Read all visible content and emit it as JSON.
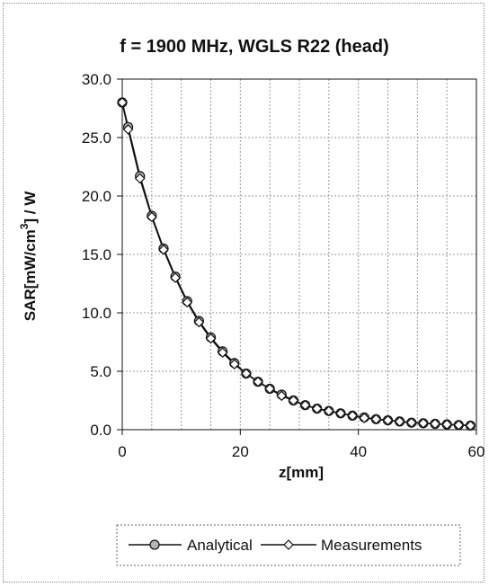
{
  "chart_data": {
    "type": "line",
    "title": "f = 1900 MHz, WGLS R22 (head)",
    "xlabel": "z[mm]",
    "ylabel_parts": {
      "pre": "SAR[mW/cm",
      "sup": "3",
      "post": "] / W"
    },
    "xlim": [
      0,
      60
    ],
    "ylim": [
      0,
      30
    ],
    "xticks": [
      0,
      20,
      40,
      60
    ],
    "yticks": [
      0,
      5,
      10,
      15,
      20,
      25,
      30
    ],
    "ytick_labels": [
      "0.0",
      "5.0",
      "10.0",
      "15.0",
      "20.0",
      "25.0",
      "30.0"
    ],
    "grid": {
      "x_step": 5,
      "y_step": 5,
      "style": "dotted"
    },
    "legend_position": "bottom",
    "series": [
      {
        "name": "Analytical",
        "marker": "circle-filled",
        "x": [
          0,
          1,
          3,
          5,
          7,
          9,
          11,
          13,
          15,
          17,
          19,
          21,
          23,
          25,
          27,
          29,
          31,
          33,
          35,
          37,
          39,
          41,
          43,
          45,
          47,
          49,
          51,
          53,
          55,
          57,
          59
        ],
        "y": [
          28.0,
          25.9,
          21.7,
          18.3,
          15.5,
          13.1,
          11.0,
          9.3,
          7.9,
          6.7,
          5.7,
          4.8,
          4.1,
          3.5,
          3.0,
          2.5,
          2.1,
          1.8,
          1.6,
          1.4,
          1.2,
          1.05,
          0.9,
          0.8,
          0.7,
          0.6,
          0.55,
          0.5,
          0.45,
          0.4,
          0.35
        ]
      },
      {
        "name": "Measurements",
        "marker": "diamond-open",
        "x": [
          0,
          1,
          3,
          5,
          7,
          9,
          11,
          13,
          15,
          17,
          19,
          21,
          23,
          25,
          27,
          29,
          31,
          33,
          35,
          37,
          39,
          41,
          43,
          45,
          47,
          49,
          51,
          53,
          55,
          57,
          59
        ],
        "y": [
          28.0,
          25.7,
          21.5,
          18.2,
          15.4,
          13.0,
          10.9,
          9.2,
          7.8,
          6.6,
          5.6,
          4.8,
          4.1,
          3.5,
          2.9,
          2.5,
          2.1,
          1.8,
          1.6,
          1.4,
          1.2,
          1.0,
          0.9,
          0.8,
          0.7,
          0.6,
          0.55,
          0.5,
          0.45,
          0.4,
          0.35
        ]
      }
    ],
    "colors": {
      "line": "#111111",
      "analytical_fill": "#b5b5b5",
      "grid": "#9a9a9a"
    }
  }
}
